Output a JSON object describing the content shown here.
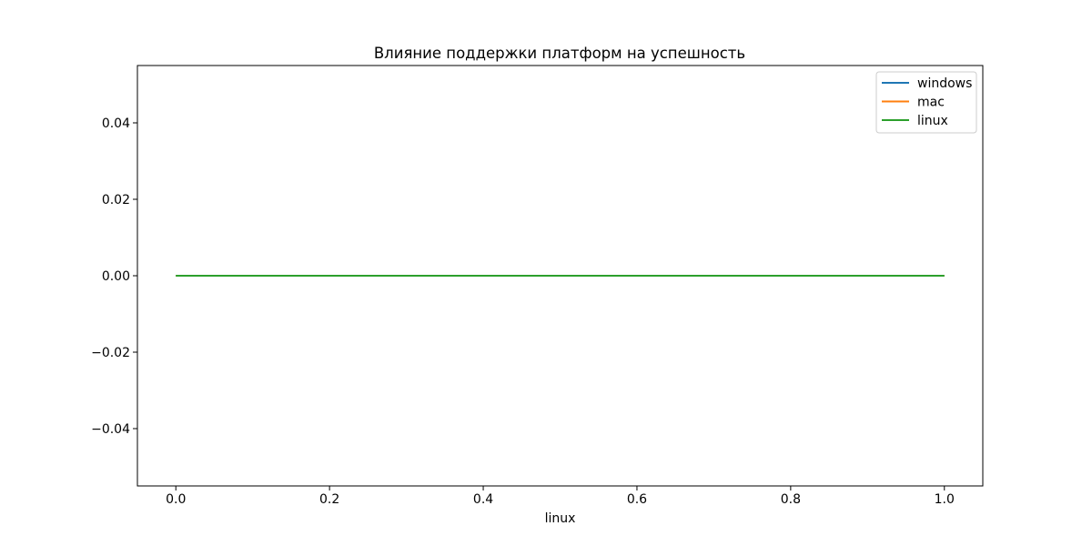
{
  "chart_data": {
    "type": "line",
    "title": "Влияние поддержки платформ на успешность",
    "xlabel": "linux",
    "ylabel": "",
    "xlim": [
      -0.05,
      1.05
    ],
    "ylim": [
      -0.055,
      0.055
    ],
    "x_ticks": [
      0.0,
      0.2,
      0.4,
      0.6,
      0.8,
      1.0
    ],
    "x_tick_labels": [
      "0.0",
      "0.2",
      "0.4",
      "0.6",
      "0.8",
      "1.0"
    ],
    "y_ticks": [
      0.04,
      0.02,
      0.0,
      -0.02,
      -0.04
    ],
    "y_tick_labels": [
      "0.04",
      "0.02",
      "0.00",
      "−0.02",
      "−0.04"
    ],
    "grid": false,
    "legend_position": "top-right",
    "series": [
      {
        "name": "windows",
        "color": "#1f77b4",
        "x": [
          0.0,
          1.0
        ],
        "y": [
          0.0,
          0.0
        ]
      },
      {
        "name": "mac",
        "color": "#ff7f0e",
        "x": [
          0.0,
          1.0
        ],
        "y": [
          0.0,
          0.0
        ]
      },
      {
        "name": "linux",
        "color": "#2ca02c",
        "x": [
          0.0,
          1.0
        ],
        "y": [
          0.0,
          0.0
        ]
      }
    ]
  }
}
